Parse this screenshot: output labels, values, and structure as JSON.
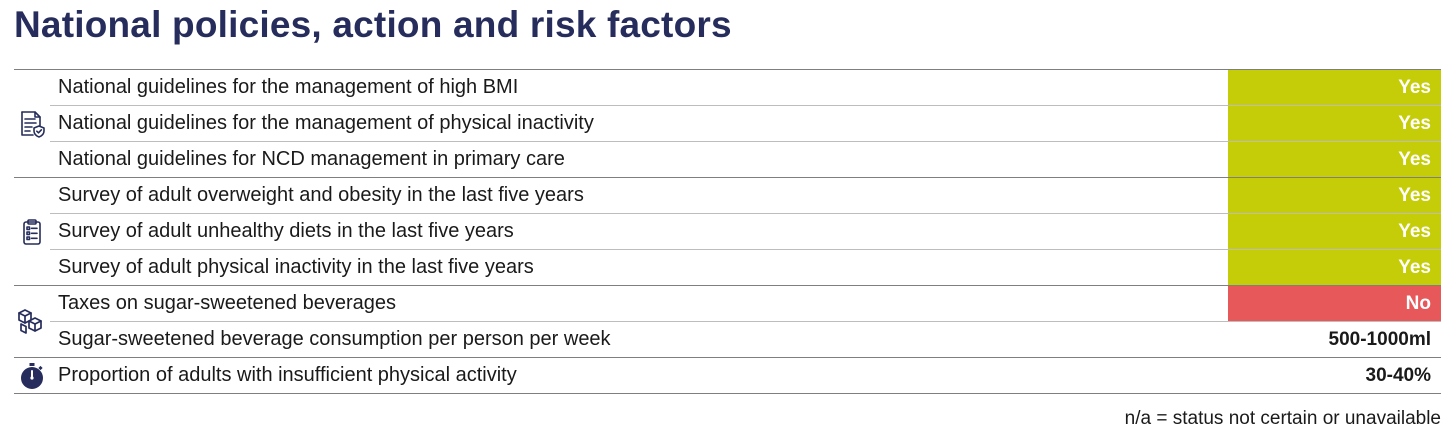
{
  "title": "National policies, action and risk factors",
  "groups": [
    {
      "icon": "document-guidelines-icon",
      "rows": [
        {
          "label": "National guidelines for the management of high BMI",
          "value": "Yes",
          "status": "yes"
        },
        {
          "label": "National guidelines for the management of physical inactivity",
          "value": "Yes",
          "status": "yes"
        },
        {
          "label": "National guidelines for NCD management in primary care",
          "value": "Yes",
          "status": "yes"
        }
      ]
    },
    {
      "icon": "clipboard-survey-icon",
      "rows": [
        {
          "label": "Survey of adult overweight and obesity in the last five years",
          "value": "Yes",
          "status": "yes"
        },
        {
          "label": "Survey of adult unhealthy diets in the last five years",
          "value": "Yes",
          "status": "yes"
        },
        {
          "label": "Survey of adult physical inactivity in the last five years",
          "value": "Yes",
          "status": "yes"
        }
      ]
    },
    {
      "icon": "boxes-icon",
      "rows": [
        {
          "label": "Taxes on sugar-sweetened beverages",
          "value": "No",
          "status": "no"
        },
        {
          "label": "Sugar-sweetened beverage consumption per person per week",
          "value": "500-1000ml",
          "status": "plain"
        }
      ]
    },
    {
      "icon": "stopwatch-icon",
      "rows": [
        {
          "label": "Proportion of adults with insufficient physical activity",
          "value": "30-40%",
          "status": "plain"
        }
      ]
    }
  ],
  "colors": {
    "yes": "#c5cd08",
    "no": "#e6585a",
    "title": "#262d5c"
  },
  "footnote": "n/a = status not certain or unavailable"
}
